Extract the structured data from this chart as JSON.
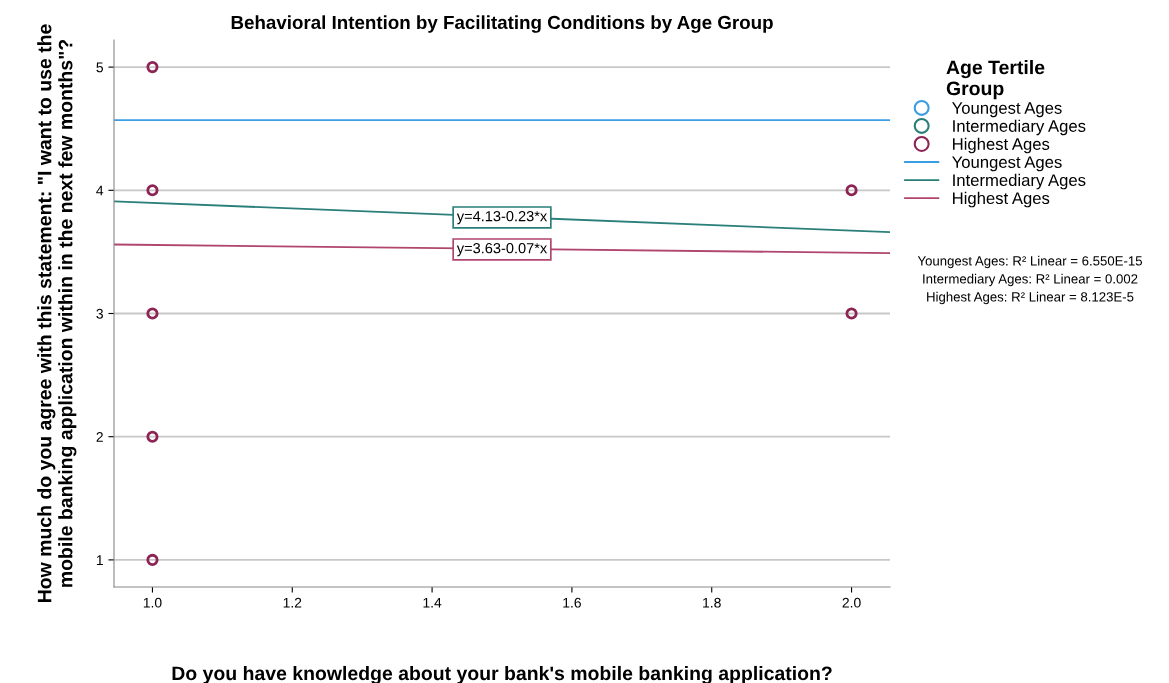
{
  "chart_data": {
    "type": "scatter",
    "title": "Behavioral Intention by Facilitating Conditions by Age Group",
    "xlabel": "Do you have knowledge about your bank's mobile banking application?",
    "ylabel": "How much do you agree with this statement: \"I want to use the mobile banking application within in the next few months\"?",
    "legend_title": "Age Tertile Group",
    "xlim": [
      0.945,
      2.055
    ],
    "xticks": [
      {
        "value": 1,
        "label": "1.0"
      },
      {
        "value": 1.2,
        "label": "1.2"
      },
      {
        "value": 1.4,
        "label": "1.4"
      },
      {
        "value": 1.6,
        "label": "1.6"
      },
      {
        "value": 1.8,
        "label": "1.8"
      },
      {
        "value": 2,
        "label": "2.0"
      }
    ],
    "ylim": [
      0.78,
      5.22
    ],
    "yticks": [
      1,
      2,
      3,
      4,
      5
    ],
    "grid": "y",
    "legend": "right",
    "marker": "circle",
    "series": [
      {
        "name": "Youngest Ages",
        "color": "#3a9ee3"
      },
      {
        "name": "Intermediary Ages",
        "color": "#2a7f7a"
      },
      {
        "name": "Highest Ages",
        "color": "#8e2455",
        "x": [
          1,
          1,
          1,
          1,
          1,
          2,
          2
        ],
        "values": [
          5,
          4,
          3,
          2,
          1,
          4,
          3
        ]
      },
      {
        "name": "Youngest Ages",
        "type": "line",
        "marker": "none",
        "color": "#3a9ee3",
        "x": [
          0.945,
          2.055
        ],
        "values": [
          4.57,
          4.57
        ]
      },
      {
        "name": "Intermediary Ages",
        "type": "line",
        "marker": "none",
        "color": "#2a7f7a",
        "x": [
          0.945,
          2.055
        ],
        "values": [
          3.91,
          3.66
        ]
      },
      {
        "name": "Highest Ages",
        "type": "line",
        "marker": "none",
        "color": "#b0456e",
        "x": [
          0.945,
          2.055
        ],
        "values": [
          3.56,
          3.49
        ]
      }
    ],
    "annotations": [
      {
        "text": "y=4.13-0.23*x",
        "x": 1.5,
        "y": 3.78
      },
      {
        "text": "y=3.63-0.07*x",
        "x": 1.5,
        "y": 3.52
      },
      "Youngest Ages: R² Linear = 6.550E-15",
      "Intermediary Ages: R² Linear = 0.002",
      "Highest Ages: R² Linear = 8.123E-5"
    ]
  }
}
